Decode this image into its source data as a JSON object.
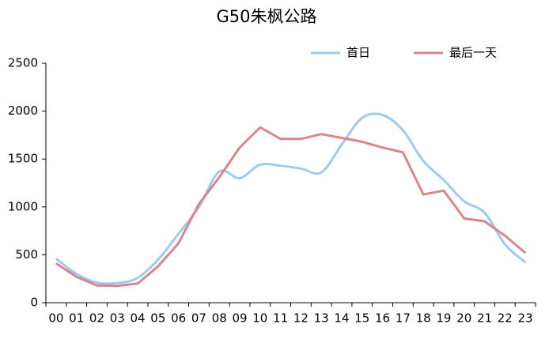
{
  "chart_data": {
    "type": "line",
    "title": "G50朱枫公路",
    "categories": [
      "00",
      "01",
      "02",
      "03",
      "04",
      "05",
      "06",
      "07",
      "08",
      "09",
      "10",
      "11",
      "12",
      "13",
      "14",
      "15",
      "16",
      "17",
      "18",
      "19",
      "20",
      "21",
      "22",
      "23"
    ],
    "series": [
      {
        "name": "首日",
        "color": "#9dcbf0",
        "smooth": true,
        "values": [
          460,
          300,
          210,
          205,
          260,
          450,
          720,
          1000,
          1370,
          1300,
          1440,
          1430,
          1400,
          1360,
          1650,
          1930,
          1960,
          1800,
          1480,
          1280,
          1060,
          940,
          610,
          420
        ]
      },
      {
        "name": "最后一天",
        "color": "#d9868b",
        "smooth": false,
        "values": [
          410,
          270,
          180,
          175,
          200,
          380,
          620,
          1030,
          1310,
          1620,
          1830,
          1710,
          1710,
          1760,
          1720,
          1680,
          1620,
          1570,
          1130,
          1170,
          880,
          850,
          700,
          520
        ]
      }
    ],
    "ylim": [
      0,
      2500
    ],
    "yticks": [
      0,
      500,
      1000,
      1500,
      2000,
      2500
    ],
    "grid": false,
    "legend": "top-right"
  }
}
